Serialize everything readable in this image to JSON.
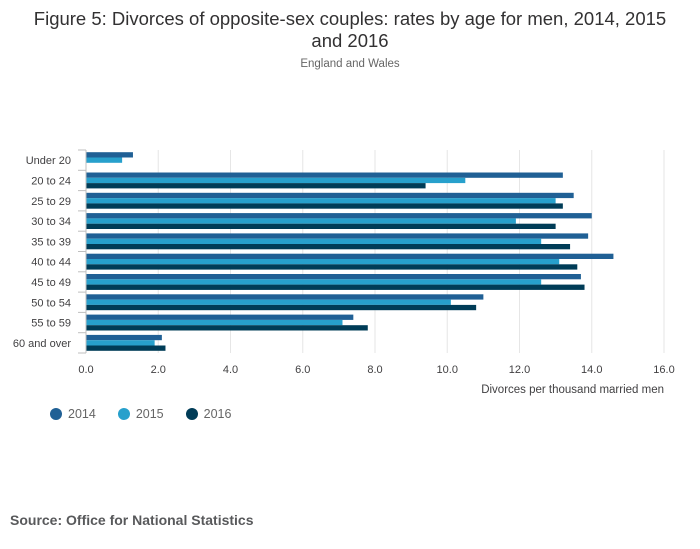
{
  "title": "Figure 5: Divorces of opposite-sex couples: rates by age for men, 2014, 2015 and 2016",
  "subtitle": "England and Wales",
  "source": "Source: Office for National Statistics",
  "chart_data": {
    "type": "bar",
    "orientation": "horizontal",
    "categories": [
      "Under 20",
      "20 to 24",
      "25 to 29",
      "30 to 34",
      "35 to 39",
      "40 to 44",
      "45 to 49",
      "50 to 54",
      "55 to 59",
      "60 and over"
    ],
    "series": [
      {
        "name": "2014",
        "color": "#206095",
        "values": [
          1.3,
          13.2,
          13.5,
          14.0,
          13.9,
          14.6,
          13.7,
          11.0,
          7.4,
          2.1
        ]
      },
      {
        "name": "2015",
        "color": "#27a0cc",
        "values": [
          1.0,
          10.5,
          13.0,
          11.9,
          12.6,
          13.1,
          12.6,
          10.1,
          7.1,
          1.9
        ]
      },
      {
        "name": "2016",
        "color": "#003c57",
        "values": [
          0.0,
          9.4,
          13.2,
          13.0,
          13.4,
          13.6,
          13.8,
          10.8,
          7.8,
          2.2
        ]
      }
    ],
    "xlabel": "Divorces per thousand married men",
    "ylabel": "",
    "xlim": [
      0,
      16
    ],
    "ticks": [
      "0.0",
      "2.0",
      "4.0",
      "6.0",
      "8.0",
      "10.0",
      "12.0",
      "14.0",
      "16.0"
    ],
    "grid": "vertical",
    "legend_position": "bottom-left"
  }
}
